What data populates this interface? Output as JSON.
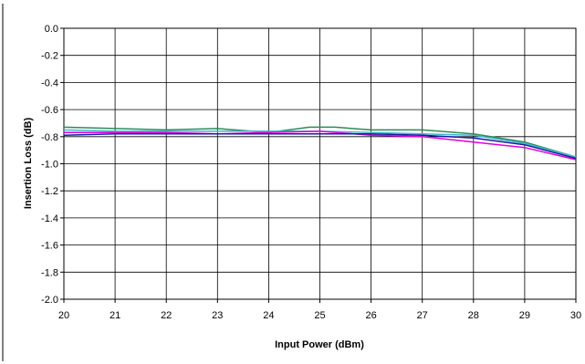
{
  "chart_data": {
    "type": "line",
    "xlabel": "Input Power (dBm)",
    "ylabel": "Insertion Loss (dB)",
    "xlim": [
      20,
      30
    ],
    "ylim": [
      -2.0,
      0.0
    ],
    "x_ticks": [
      "20",
      "21",
      "22",
      "23",
      "24",
      "25",
      "26",
      "27",
      "28",
      "29",
      "30"
    ],
    "y_ticks": [
      "0.0",
      "-0.2",
      "-0.4",
      "-0.6",
      "-0.8",
      "-1.0",
      "-1.2",
      "-1.4",
      "-1.6",
      "-1.8",
      "-2.0"
    ],
    "grid": true,
    "legend": "none",
    "series": [
      {
        "color": "#2e8b57",
        "points": [
          [
            20,
            -0.73
          ],
          [
            21,
            -0.74
          ],
          [
            22,
            -0.75
          ],
          [
            23,
            -0.74
          ],
          [
            24,
            -0.77
          ],
          [
            24.8,
            -0.73
          ],
          [
            25.3,
            -0.73
          ],
          [
            26,
            -0.75
          ],
          [
            27,
            -0.75
          ],
          [
            28,
            -0.78
          ],
          [
            29,
            -0.84
          ],
          [
            30,
            -0.95
          ]
        ]
      },
      {
        "color": "#3fb8c8",
        "points": [
          [
            20,
            -0.75
          ],
          [
            21,
            -0.76
          ],
          [
            22,
            -0.76
          ],
          [
            23,
            -0.76
          ],
          [
            24,
            -0.76
          ],
          [
            25,
            -0.76
          ],
          [
            26,
            -0.77
          ],
          [
            27,
            -0.78
          ],
          [
            28,
            -0.79
          ],
          [
            29,
            -0.85
          ],
          [
            30,
            -0.95
          ]
        ]
      },
      {
        "color": "#e000e0",
        "points": [
          [
            20,
            -0.77
          ],
          [
            21,
            -0.77
          ],
          [
            22,
            -0.77
          ],
          [
            23,
            -0.78
          ],
          [
            24,
            -0.77
          ],
          [
            25,
            -0.76
          ],
          [
            26,
            -0.79
          ],
          [
            27,
            -0.8
          ],
          [
            28,
            -0.84
          ],
          [
            29,
            -0.88
          ],
          [
            30,
            -0.97
          ]
        ]
      },
      {
        "color": "#1a1aa8",
        "points": [
          [
            20,
            -0.79
          ],
          [
            21,
            -0.78
          ],
          [
            22,
            -0.78
          ],
          [
            23,
            -0.78
          ],
          [
            24,
            -0.78
          ],
          [
            25,
            -0.78
          ],
          [
            26,
            -0.78
          ],
          [
            27,
            -0.79
          ],
          [
            28,
            -0.81
          ],
          [
            29,
            -0.86
          ],
          [
            30,
            -0.96
          ]
        ]
      }
    ]
  }
}
